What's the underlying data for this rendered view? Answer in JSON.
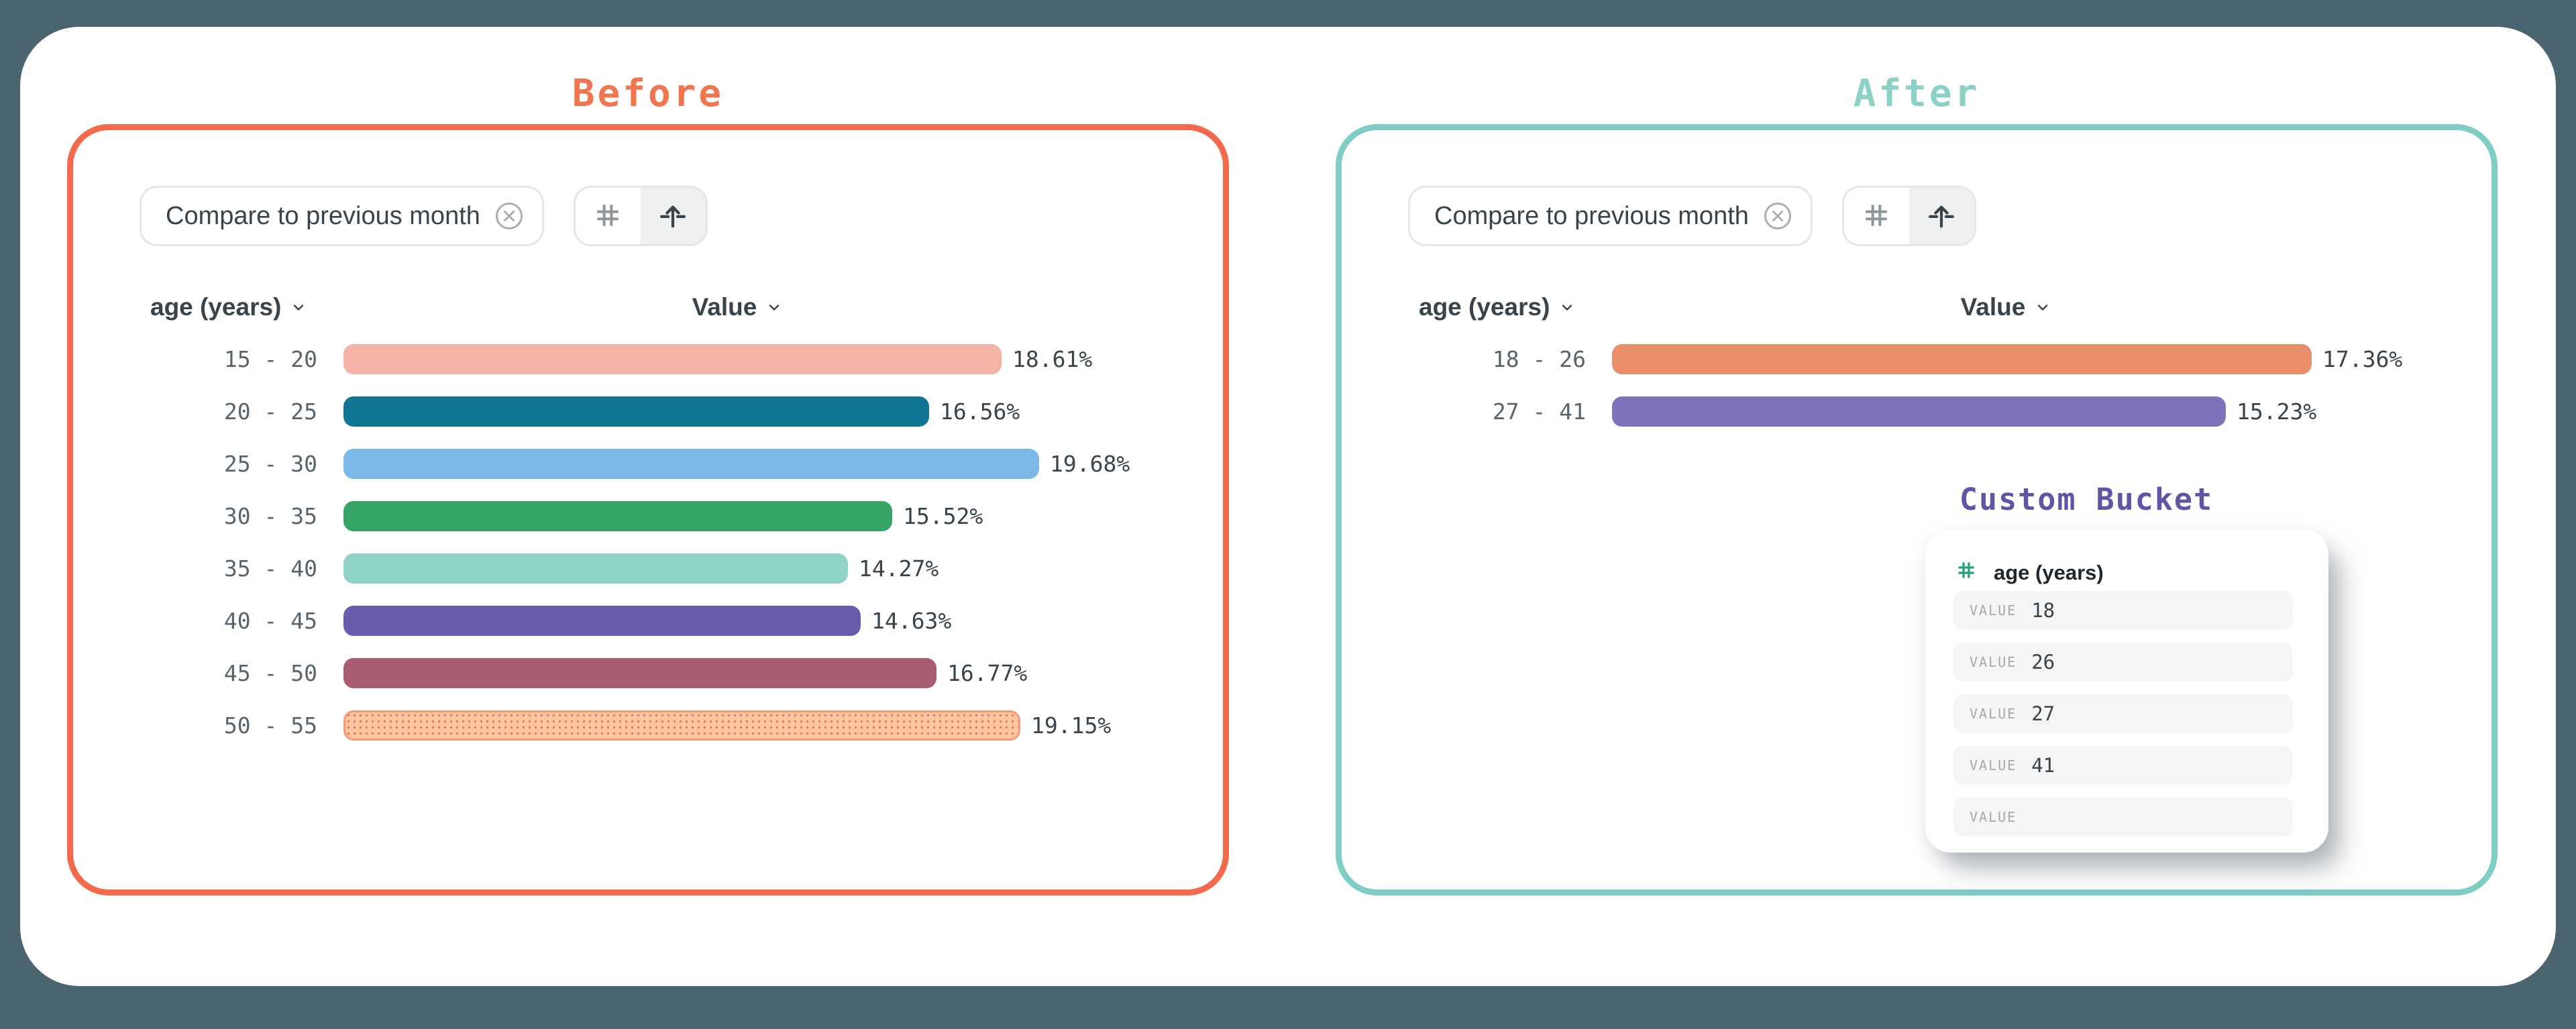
{
  "page": {
    "background": "#4A656F",
    "card_background": "#FFFFFF"
  },
  "panels": {
    "before": {
      "title": "Before",
      "title_color": "#F0764F",
      "accent_border": "#F2694C",
      "filter_chip": {
        "label": "Compare to previous month",
        "remove_icon": "circle-x-icon"
      },
      "view_toggle": {
        "options": [
          {
            "icon": "hash-icon",
            "selected": false
          },
          {
            "icon": "bucket-arrow-icon",
            "selected": true
          }
        ]
      },
      "columns": {
        "dimension_label": "age (years)",
        "value_label": "Value"
      }
    },
    "after": {
      "title": "After",
      "title_color": "#8CD1C6",
      "accent_border": "#7FCDC4",
      "filter_chip": {
        "label": "Compare to previous month",
        "remove_icon": "circle-x-icon"
      },
      "view_toggle": {
        "options": [
          {
            "icon": "hash-icon",
            "selected": false
          },
          {
            "icon": "bucket-arrow-icon",
            "selected": true
          }
        ]
      },
      "columns": {
        "dimension_label": "age (years)",
        "value_label": "Value"
      }
    }
  },
  "custom_bucket": {
    "title": "Custom Bucket",
    "title_color": "#6055A5",
    "field": {
      "icon": "hash-icon",
      "icon_color": "#27A17A",
      "label": "age (years)"
    },
    "rows": [
      {
        "label": "VALUE",
        "value": "18"
      },
      {
        "label": "VALUE",
        "value": "26"
      },
      {
        "label": "VALUE",
        "value": "27"
      },
      {
        "label": "VALUE",
        "value": "41"
      },
      {
        "label": "VALUE",
        "value": ""
      }
    ]
  },
  "chart_data": [
    {
      "type": "bar",
      "orientation": "horizontal",
      "title": "Before",
      "xlabel": "Value",
      "ylabel": "age (years)",
      "unit": "%",
      "categories": [
        "15 - 20",
        "20 - 25",
        "25 - 30",
        "30 - 35",
        "35 - 40",
        "40 - 45",
        "45 - 50",
        "50 - 55"
      ],
      "values": [
        18.61,
        16.56,
        19.68,
        15.52,
        14.27,
        14.63,
        16.77,
        19.15
      ],
      "value_labels": [
        "18.61%",
        "16.56%",
        "19.68%",
        "15.52%",
        "14.27%",
        "14.63%",
        "16.77%",
        "19.15%"
      ],
      "colors": [
        "#F5B2A7",
        "#107592",
        "#7CB9E8",
        "#36A367",
        "#8FD4C6",
        "#695CAC",
        "#AA5C72",
        "#FFC7A1"
      ],
      "dotted_category": "50 - 55",
      "grid": false,
      "value_axis_shown": false
    },
    {
      "type": "bar",
      "orientation": "horizontal",
      "title": "After",
      "xlabel": "Value",
      "ylabel": "age (years)",
      "unit": "%",
      "categories": [
        "18 - 26",
        "27 - 41"
      ],
      "values": [
        17.36,
        15.23
      ],
      "value_labels": [
        "17.36%",
        "15.23%"
      ],
      "colors": [
        "#E88E6B",
        "#8072BB"
      ],
      "grid": false,
      "value_axis_shown": false
    }
  ]
}
